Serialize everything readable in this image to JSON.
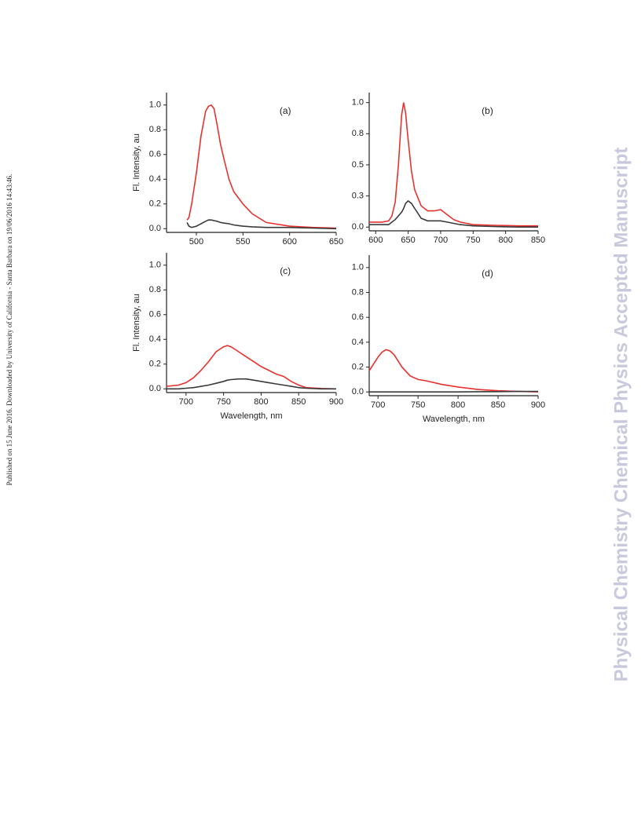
{
  "side_note": "Published on 15 June 2016. Downloaded by University of California - Santa Barbara on 19/06/2016 14:43:46.",
  "watermark": "Physical Chemistry Chemical Physics Accepted Manuscript",
  "chart_data": [
    {
      "type": "line",
      "title": "(a)",
      "ylabel": "Fl. Intensity, au",
      "x": [
        490,
        492,
        495,
        500,
        505,
        510,
        513,
        516,
        519,
        522,
        526,
        530,
        535,
        540,
        545,
        550,
        560,
        575,
        600,
        625,
        650
      ],
      "series": [
        {
          "color": "#e8312f",
          "values": [
            0.07,
            0.09,
            0.2,
            0.45,
            0.75,
            0.95,
            0.99,
            1.0,
            0.97,
            0.85,
            0.68,
            0.55,
            0.4,
            0.3,
            0.25,
            0.2,
            0.12,
            0.05,
            0.02,
            0.01,
            0.005
          ]
        },
        {
          "color": "#3a3a3a",
          "values": [
            0.05,
            0.02,
            0.01,
            0.02,
            0.04,
            0.06,
            0.07,
            0.07,
            0.065,
            0.06,
            0.05,
            0.045,
            0.04,
            0.03,
            0.025,
            0.02,
            0.015,
            0.01,
            0.01,
            0.005,
            0
          ]
        }
      ],
      "xlim": [
        468,
        650
      ],
      "ylim": [
        -0.03,
        1.1
      ],
      "xticks": [
        500,
        550,
        600,
        650
      ],
      "yticks": [
        {
          "value": 0,
          "label": "0.0"
        },
        0.2,
        0.4,
        0.6,
        0.8,
        {
          "value": 1,
          "label": "1.0"
        }
      ]
    },
    {
      "type": "line",
      "title": "(b)",
      "x": [
        590,
        610,
        620,
        625,
        630,
        635,
        640,
        643,
        646,
        650,
        655,
        660,
        670,
        680,
        690,
        700,
        710,
        720,
        730,
        750,
        780,
        820,
        850
      ],
      "series": [
        {
          "color": "#e8312f",
          "values": [
            0.04,
            0.04,
            0.05,
            0.09,
            0.2,
            0.5,
            0.9,
            1.0,
            0.92,
            0.7,
            0.45,
            0.3,
            0.17,
            0.13,
            0.13,
            0.14,
            0.1,
            0.06,
            0.04,
            0.02,
            0.015,
            0.01,
            0.01
          ]
        },
        {
          "color": "#3a3a3a",
          "values": [
            0.02,
            0.02,
            0.02,
            0.04,
            0.06,
            0.09,
            0.12,
            0.15,
            0.19,
            0.21,
            0.19,
            0.15,
            0.07,
            0.05,
            0.05,
            0.05,
            0.04,
            0.03,
            0.02,
            0.01,
            0.005,
            0,
            0
          ]
        }
      ],
      "xlim": [
        590,
        850
      ],
      "ylim": [
        -0.03,
        1.08
      ],
      "xticks": [
        600,
        650,
        700,
        750,
        800,
        850
      ],
      "yticks": [
        {
          "value": 0,
          "label": "0.0"
        },
        {
          "value": 0.25,
          "label": "0.3"
        },
        0.5,
        {
          "value": 0.75,
          "label": "0.8"
        },
        {
          "value": 1,
          "label": "1.0"
        }
      ]
    },
    {
      "type": "line",
      "title": "(c)",
      "xlabel": "Wavelength, nm",
      "ylabel": "Fl. Intensity, au",
      "x": [
        674,
        690,
        700,
        710,
        720,
        730,
        740,
        750,
        755,
        760,
        770,
        780,
        790,
        800,
        810,
        820,
        830,
        840,
        850,
        860,
        880,
        900
      ],
      "series": [
        {
          "color": "#e8312f",
          "values": [
            0.02,
            0.03,
            0.05,
            0.09,
            0.15,
            0.22,
            0.3,
            0.34,
            0.35,
            0.34,
            0.3,
            0.26,
            0.22,
            0.18,
            0.15,
            0.12,
            0.1,
            0.06,
            0.03,
            0.01,
            0.003,
            0
          ]
        },
        {
          "color": "#3a3a3a",
          "values": [
            0,
            0,
            0.005,
            0.01,
            0.02,
            0.03,
            0.045,
            0.06,
            0.07,
            0.075,
            0.08,
            0.08,
            0.07,
            0.06,
            0.05,
            0.04,
            0.03,
            0.02,
            0.01,
            0.005,
            0,
            0
          ]
        }
      ],
      "xlim": [
        674,
        900
      ],
      "ylim": [
        -0.03,
        1.1
      ],
      "xticks": [
        700,
        750,
        800,
        850,
        900
      ],
      "yticks": [
        {
          "value": 0,
          "label": "0.0"
        },
        0.2,
        0.4,
        0.6,
        0.8,
        {
          "value": 1,
          "label": "1.0"
        }
      ]
    },
    {
      "type": "line",
      "title": "(d)",
      "xlabel": "Wavelength, nm",
      "x": [
        689,
        695,
        700,
        705,
        710,
        715,
        720,
        730,
        740,
        750,
        760,
        780,
        800,
        825,
        850,
        875,
        900
      ],
      "series": [
        {
          "color": "#e8312f",
          "values": [
            0.17,
            0.23,
            0.28,
            0.32,
            0.34,
            0.33,
            0.3,
            0.2,
            0.13,
            0.1,
            0.09,
            0.06,
            0.04,
            0.02,
            0.01,
            0.005,
            0
          ]
        },
        {
          "color": "#3a3a3a",
          "values": [
            0,
            0,
            0,
            0,
            0,
            0,
            0,
            0,
            0,
            0,
            0,
            0,
            0,
            0.002,
            0.003,
            0.004,
            0.005
          ]
        }
      ],
      "xlim": [
        689,
        900
      ],
      "ylim": [
        -0.03,
        1.1
      ],
      "xticks": [
        700,
        750,
        800,
        850,
        900
      ],
      "yticks": [
        {
          "value": 0,
          "label": "0.0"
        },
        0.2,
        0.4,
        0.6,
        0.8,
        {
          "value": 1,
          "label": "1.0"
        }
      ]
    }
  ]
}
